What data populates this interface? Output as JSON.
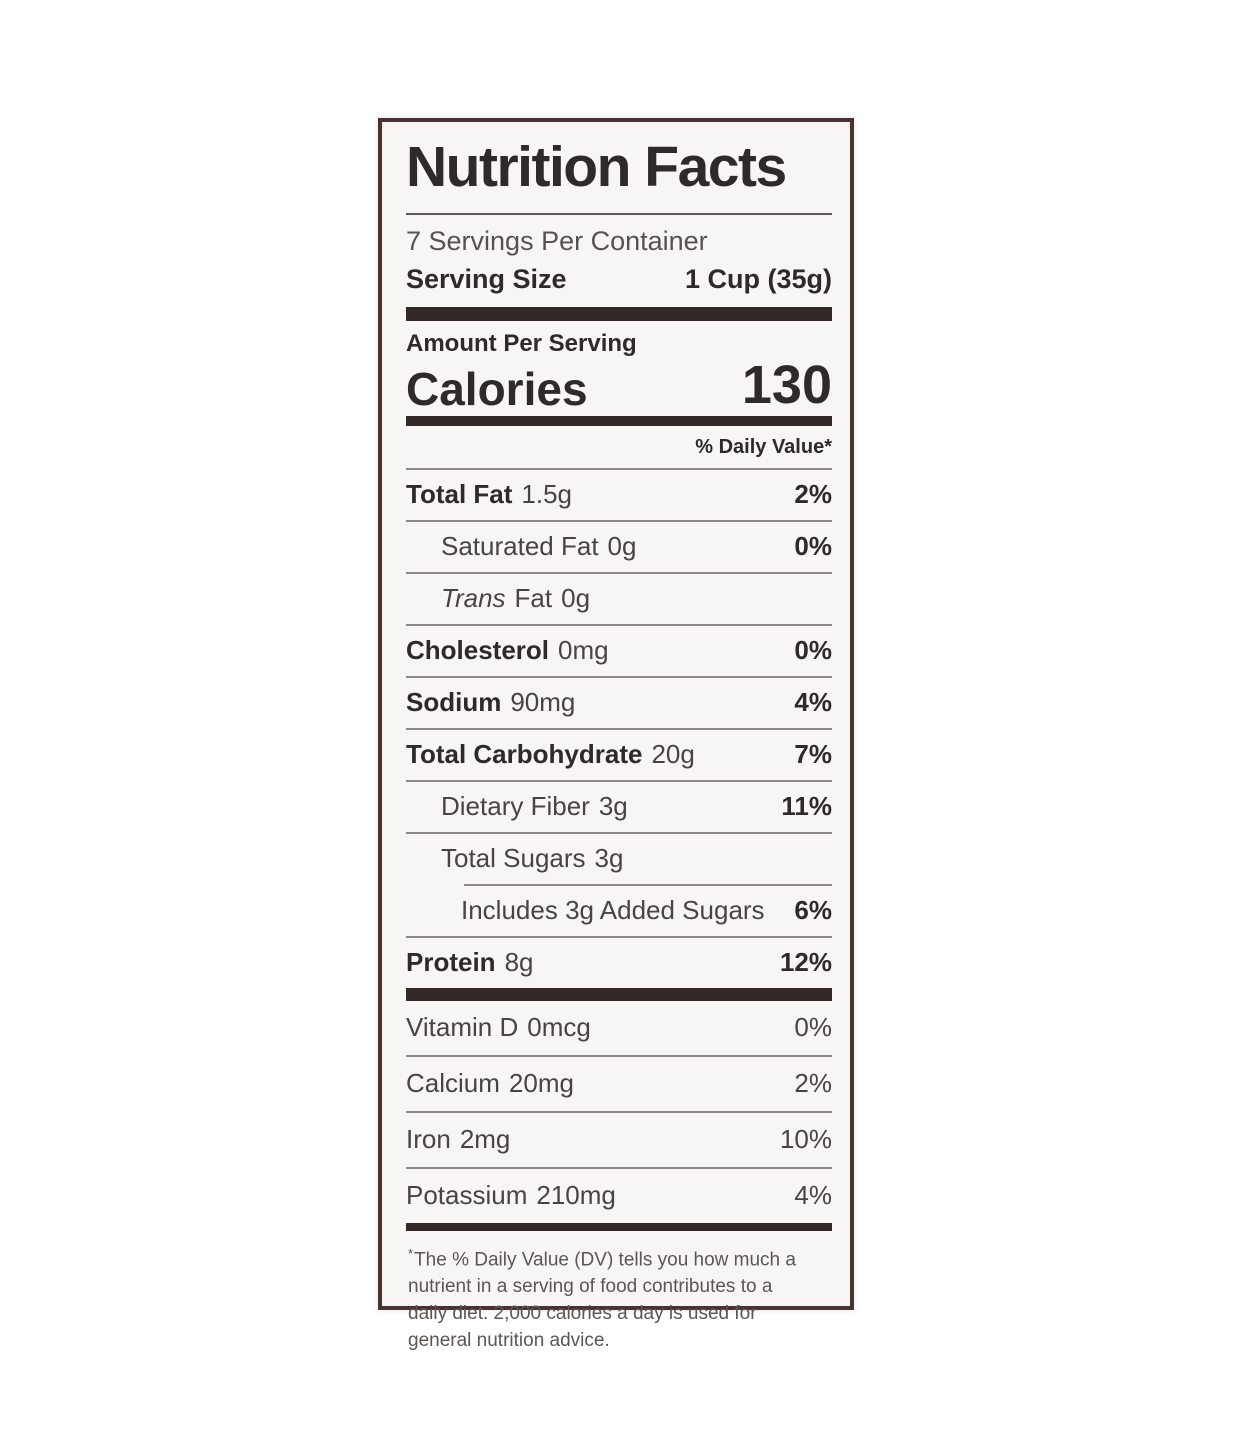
{
  "label": {
    "title": "Nutrition Facts",
    "servings_per_container": "7 Servings Per Container",
    "serving_size": {
      "label": "Serving Size",
      "value": "1 Cup (35g)"
    },
    "amount_per_serving": "Amount Per Serving",
    "calories": {
      "label": "Calories",
      "value": "130"
    },
    "daily_value_header": "% Daily Value*",
    "rows": [
      {
        "name": "Total Fat",
        "amount": "1.5g",
        "dv": "2%",
        "name_bold": true,
        "dv_bold": true,
        "indent": 0
      },
      {
        "name": "Saturated Fat",
        "amount": "0g",
        "dv": "0%",
        "name_bold": false,
        "dv_bold": true,
        "indent": 1
      },
      {
        "name_italic": "Trans",
        "name": "Fat",
        "amount": "0g",
        "dv": "",
        "name_bold": false,
        "dv_bold": false,
        "indent": 1
      },
      {
        "name": "Cholesterol",
        "amount": "0mg",
        "dv": "0%",
        "name_bold": true,
        "dv_bold": true,
        "indent": 0
      },
      {
        "name": "Sodium",
        "amount": "90mg",
        "dv": "4%",
        "name_bold": true,
        "dv_bold": true,
        "indent": 0
      },
      {
        "name": "Total Carbohydrate",
        "amount": "20g",
        "dv": "7%",
        "name_bold": true,
        "dv_bold": true,
        "indent": 0
      },
      {
        "name": "Dietary Fiber",
        "amount": "3g",
        "dv": "11%",
        "name_bold": false,
        "dv_bold": true,
        "indent": 1
      },
      {
        "name": "Total Sugars",
        "amount": "3g",
        "dv": "",
        "name_bold": false,
        "dv_bold": false,
        "indent": 1
      },
      {
        "name": "Includes 3g Added Sugars",
        "amount": "",
        "dv": "6%",
        "name_bold": false,
        "dv_bold": true,
        "indent": 2,
        "divider_indent": true
      },
      {
        "name": "Protein",
        "amount": "8g",
        "dv": "12%",
        "name_bold": true,
        "dv_bold": true,
        "indent": 0
      }
    ],
    "vitamins": [
      {
        "name": "Vitamin D",
        "amount": "0mcg",
        "dv": "0%"
      },
      {
        "name": "Calcium",
        "amount": "20mg",
        "dv": "2%"
      },
      {
        "name": "Iron",
        "amount": "2mg",
        "dv": "10%"
      },
      {
        "name": "Potassium",
        "amount": "210mg",
        "dv": "4%"
      }
    ],
    "footnote": {
      "marker": "*",
      "text": "The % Daily Value (DV) tells you how much a nutrient in a serving of food contributes to a daily diet. 2,000 calories a day is used for general nutrition advice."
    },
    "colors": {
      "border": "#4a3132",
      "bar": "#332a28",
      "separator": "#8b8887",
      "label_background": "#f7f6f4",
      "text": "#474441",
      "text_bold": "#2d2a29"
    }
  }
}
